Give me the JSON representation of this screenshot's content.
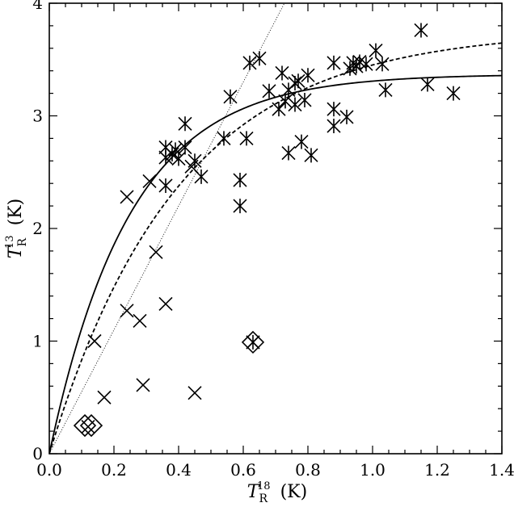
{
  "chart_data": {
    "type": "scatter",
    "xlabel": {
      "main": "T",
      "sub": "R",
      "sup": "18",
      "unit": "(K)"
    },
    "ylabel": {
      "main": "T",
      "sub": "R",
      "sup": "13",
      "unit": "(K)"
    },
    "xlim": [
      0.0,
      1.4
    ],
    "ylim": [
      0,
      4
    ],
    "xticks": [
      {
        "value": 0.0,
        "label": "0.0"
      },
      {
        "value": 0.2,
        "label": "0.2"
      },
      {
        "value": 0.4,
        "label": "0.4"
      },
      {
        "value": 0.6,
        "label": "0.6"
      },
      {
        "value": 0.8,
        "label": "0.8"
      },
      {
        "value": 1.0,
        "label": "1.0"
      },
      {
        "value": 1.2,
        "label": "1.2"
      },
      {
        "value": 1.4,
        "label": "1.4"
      }
    ],
    "yticks": [
      {
        "value": 0,
        "label": "0"
      },
      {
        "value": 1,
        "label": "1"
      },
      {
        "value": 2,
        "label": "2"
      },
      {
        "value": 3,
        "label": "3"
      },
      {
        "value": 4,
        "label": "4"
      }
    ],
    "grid": false,
    "legend": "none",
    "series": [
      {
        "marker": "asterisk",
        "points": [
          [
            0.36,
            2.72
          ],
          [
            0.36,
            2.63
          ],
          [
            0.38,
            2.66
          ],
          [
            0.39,
            2.7
          ],
          [
            0.4,
            2.62
          ],
          [
            0.42,
            2.72
          ],
          [
            0.42,
            2.93
          ],
          [
            0.36,
            2.38
          ],
          [
            0.45,
            2.6
          ],
          [
            0.47,
            2.46
          ],
          [
            0.54,
            2.8
          ],
          [
            0.56,
            3.17
          ],
          [
            0.59,
            2.43
          ],
          [
            0.59,
            2.2
          ],
          [
            0.61,
            2.8
          ],
          [
            0.62,
            3.47
          ],
          [
            0.65,
            3.51
          ],
          [
            0.68,
            3.22
          ],
          [
            0.71,
            3.06
          ],
          [
            0.72,
            3.38
          ],
          [
            0.73,
            3.13
          ],
          [
            0.74,
            3.23
          ],
          [
            0.74,
            2.67
          ],
          [
            0.76,
            3.29
          ],
          [
            0.77,
            3.31
          ],
          [
            0.76,
            3.1
          ],
          [
            0.78,
            2.77
          ],
          [
            0.79,
            3.14
          ],
          [
            0.8,
            3.36
          ],
          [
            0.81,
            2.65
          ],
          [
            0.88,
            3.47
          ],
          [
            0.88,
            3.06
          ],
          [
            0.88,
            2.91
          ],
          [
            0.92,
            2.99
          ],
          [
            0.93,
            3.42
          ],
          [
            0.94,
            3.47
          ],
          [
            0.95,
            3.44
          ],
          [
            0.96,
            3.48
          ],
          [
            0.98,
            3.46
          ],
          [
            1.01,
            3.58
          ],
          [
            1.03,
            3.46
          ],
          [
            1.04,
            3.23
          ],
          [
            1.15,
            3.76
          ],
          [
            1.17,
            3.28
          ],
          [
            1.25,
            3.2
          ],
          [
            0.63,
            0.99
          ]
        ]
      },
      {
        "marker": "x",
        "points": [
          [
            0.14,
            1.0
          ],
          [
            0.17,
            0.5
          ],
          [
            0.24,
            2.28
          ],
          [
            0.24,
            1.27
          ],
          [
            0.28,
            1.18
          ],
          [
            0.29,
            0.61
          ],
          [
            0.31,
            2.42
          ],
          [
            0.33,
            1.79
          ],
          [
            0.36,
            1.33
          ],
          [
            0.44,
            2.55
          ],
          [
            0.45,
            0.54
          ],
          [
            0.12,
            0.24
          ],
          [
            0.63,
            0.99
          ]
        ]
      },
      {
        "marker": "diamond",
        "points": [
          [
            0.11,
            0.25
          ],
          [
            0.13,
            0.25
          ],
          [
            0.63,
            0.99
          ]
        ]
      }
    ],
    "curves": [
      {
        "style": "solid",
        "function": "A*(1-exp(-x/t))",
        "A": 3.37,
        "t": 0.25
      },
      {
        "style": "dashed",
        "function": "A*(1-exp(-x/t))",
        "A": 3.76,
        "t": 0.4
      },
      {
        "style": "dotted",
        "function": "k*x",
        "k": 5.5
      }
    ]
  }
}
